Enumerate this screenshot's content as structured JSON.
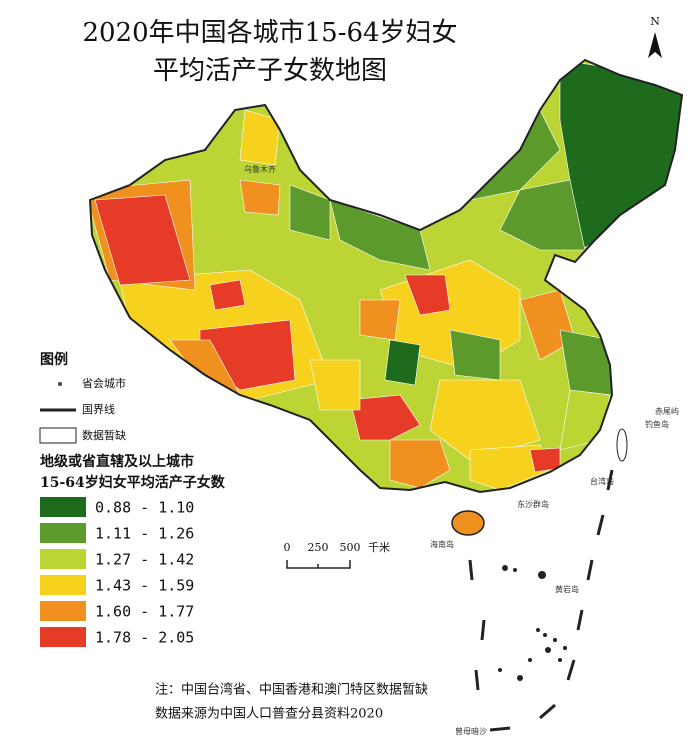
{
  "header": {
    "title_lines": [
      "2020年中国各城市15-64岁妇女",
      "平均活产子女数地图"
    ]
  },
  "north": "N",
  "legend": {
    "title": "图例",
    "symbols": [
      "省会城市",
      "国界线",
      "数据暂缺"
    ],
    "heading_lines": [
      "地级或省直辖及以上城市",
      "15-64岁妇女平均活产子女数"
    ],
    "classes": [
      {
        "label": "0.88 - 1.10",
        "color": "#1e6b1e"
      },
      {
        "label": "1.11 - 1.26",
        "color": "#5c9a2c"
      },
      {
        "label": "1.27 - 1.42",
        "color": "#bcd535"
      },
      {
        "label": "1.43 - 1.59",
        "color": "#f6d11e"
      },
      {
        "label": "1.60 - 1.77",
        "color": "#f0901f"
      },
      {
        "label": "1.78 - 2.05",
        "color": "#e63c27"
      }
    ]
  },
  "scale_bar": {
    "labels": [
      "0",
      "250",
      "500"
    ],
    "unit": "千米"
  },
  "places": [
    "乌鲁木齐",
    "台湾岛",
    "海南岛",
    "东沙群岛",
    "钓鱼岛",
    "赤尾屿",
    "黄岩岛",
    "曾母暗沙"
  ],
  "notes": [
    "注：中国台湾省、中国香港和澳门特区数据暂缺",
    "数据来源为中国人口普查分县资料2020"
  ]
}
